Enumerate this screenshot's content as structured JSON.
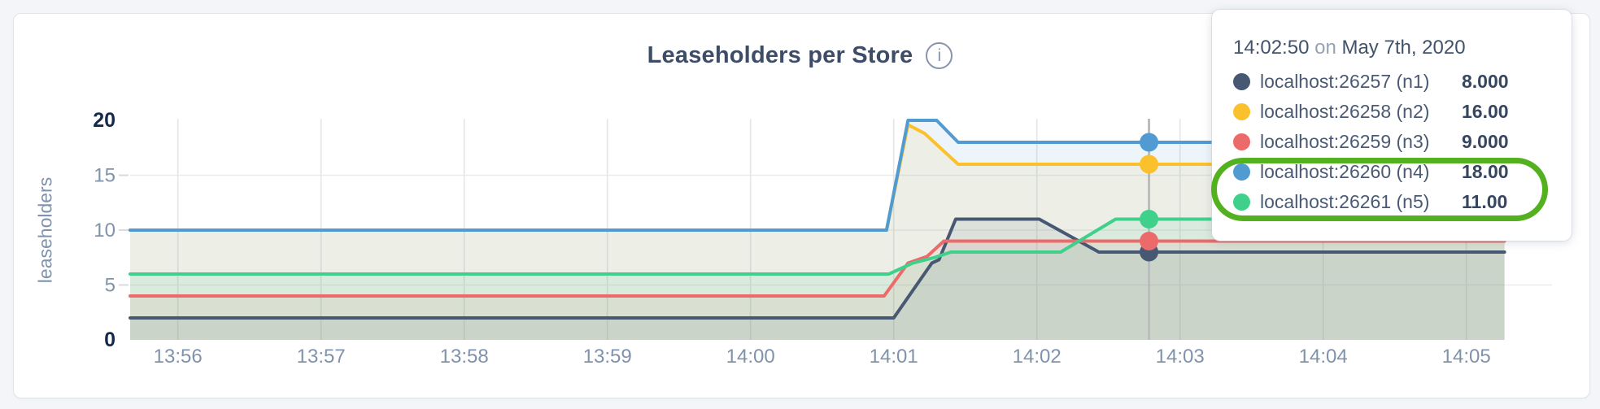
{
  "header": {
    "title": "Leaseholders per Store"
  },
  "icons": {
    "info": "i"
  },
  "colors": {
    "page_bg": "#f3f5f8",
    "grid_h": "#e9ebee",
    "grid_v": "#e3e6e6",
    "axis_text": "#8093ab",
    "axis_text_bold": "#14294d",
    "hover_line": "#b9bdc1",
    "annotation_ring": "#53b11f"
  },
  "chart_data": {
    "type": "line",
    "title": "Leaseholders per Store",
    "ylabel": "leaseholders",
    "xlabel": "",
    "ylim": [
      0,
      20
    ],
    "y_ticks": [
      0,
      5,
      10,
      15,
      20
    ],
    "y_bold_ticks": [
      0,
      20
    ],
    "y_gridlines": [
      5,
      10,
      15
    ],
    "x_ticks": [
      {
        "label": "13:56",
        "t": 20
      },
      {
        "label": "13:57",
        "t": 80
      },
      {
        "label": "13:58",
        "t": 140
      },
      {
        "label": "13:59",
        "t": 200
      },
      {
        "label": "14:00",
        "t": 260
      },
      {
        "label": "14:01",
        "t": 320
      },
      {
        "label": "14:02",
        "t": 380
      },
      {
        "label": "14:03",
        "t": 440
      },
      {
        "label": "14:04",
        "t": 500
      },
      {
        "label": "14:05",
        "t": 560
      }
    ],
    "x_domain_seconds": [
      0,
      576
    ],
    "x_note": "t = seconds after 13:55:40 on May 7th, 2020",
    "grid_on": true,
    "legend_position": "tooltip-top-right",
    "series": [
      {
        "id": "n1",
        "name": "localhost:26257 (n1)",
        "color": "#475872",
        "points": [
          [
            0,
            2
          ],
          [
            320,
            2
          ],
          [
            336,
            7
          ],
          [
            339,
            7.3
          ],
          [
            346,
            11
          ],
          [
            381,
            11
          ],
          [
            406,
            8
          ],
          [
            576,
            8
          ]
        ]
      },
      {
        "id": "n2",
        "name": "localhost:26258 (n2)",
        "color": "#fbc12d",
        "points": [
          [
            0,
            10
          ],
          [
            317,
            10
          ],
          [
            326,
            19.6
          ],
          [
            333,
            18.8
          ],
          [
            347,
            16
          ],
          [
            576,
            16
          ]
        ]
      },
      {
        "id": "n3",
        "name": "localhost:26259 (n3)",
        "color": "#ed6a6a",
        "points": [
          [
            0,
            4
          ],
          [
            316,
            4
          ],
          [
            326,
            7
          ],
          [
            334,
            7.6
          ],
          [
            341,
            9
          ],
          [
            576,
            9
          ]
        ]
      },
      {
        "id": "n4",
        "name": "localhost:26260 (n4)",
        "color": "#4f9bd2",
        "points": [
          [
            0,
            10
          ],
          [
            317,
            10
          ],
          [
            326,
            20
          ],
          [
            338,
            20
          ],
          [
            347,
            18
          ],
          [
            576,
            18
          ]
        ]
      },
      {
        "id": "n5",
        "name": "localhost:26261 (n5)",
        "color": "#3fd18c",
        "points": [
          [
            0,
            6
          ],
          [
            318,
            6
          ],
          [
            328,
            7
          ],
          [
            337,
            7.5
          ],
          [
            344,
            8
          ],
          [
            390,
            8
          ],
          [
            413,
            11
          ],
          [
            576,
            11
          ]
        ]
      }
    ],
    "hover": {
      "t": 427,
      "time": "14:02:50",
      "dot_values": [
        8,
        16,
        9,
        18,
        11
      ]
    }
  },
  "tooltip": {
    "time": "14:02:50",
    "on_word": "on",
    "date": "May 7th, 2020",
    "rows": [
      {
        "name": "localhost:26257 (n1)",
        "value": "8.000",
        "color": "#475872",
        "highlighted": false
      },
      {
        "name": "localhost:26258 (n2)",
        "value": "16.00",
        "color": "#fbc12d",
        "highlighted": false
      },
      {
        "name": "localhost:26259 (n3)",
        "value": "9.000",
        "color": "#ed6a6a",
        "highlighted": false
      },
      {
        "name": "localhost:26260 (n4)",
        "value": "18.00",
        "color": "#4f9bd2",
        "highlighted": true
      },
      {
        "name": "localhost:26261 (n5)",
        "value": "11.00",
        "color": "#3fd18c",
        "highlighted": true
      }
    ]
  }
}
